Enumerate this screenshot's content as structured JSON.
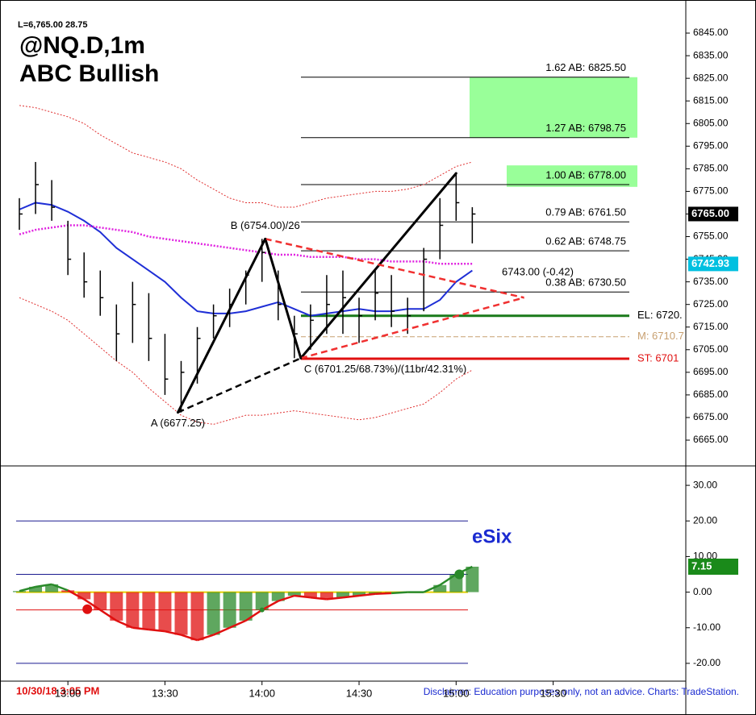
{
  "chart_data": [
    {
      "type": "ohlc",
      "header": "L=6,765.00  28.75",
      "title": "@NQ.D,1m",
      "subtitle": "ABC Bullish",
      "x": [
        "12:45",
        "12:50",
        "12:55",
        "13:00",
        "13:05",
        "13:10",
        "13:15",
        "13:20",
        "13:25",
        "13:30",
        "13:35",
        "13:40",
        "13:45",
        "13:50",
        "13:55",
        "14:00",
        "14:05",
        "14:10",
        "14:15",
        "14:20",
        "14:25",
        "14:30",
        "14:35",
        "14:40",
        "14:45",
        "14:50",
        "14:55",
        "15:00",
        "15:05"
      ],
      "high": [
        6772,
        6788,
        6780,
        6762,
        6748,
        6740,
        6725,
        6735,
        6730,
        6712,
        6700,
        6715,
        6725,
        6732,
        6740,
        6754,
        6740,
        6720,
        6725,
        6738,
        6740,
        6728,
        6740,
        6738,
        6728,
        6750,
        6772,
        6783,
        6768
      ],
      "low": [
        6758,
        6765,
        6762,
        6738,
        6728,
        6720,
        6700,
        6708,
        6700,
        6685,
        6677.25,
        6690,
        6710,
        6715,
        6725,
        6735,
        6718,
        6701.25,
        6705,
        6712,
        6712,
        6708,
        6718,
        6715,
        6712,
        6722,
        6745,
        6762,
        6752
      ],
      "close": [
        6765,
        6778,
        6768,
        6745,
        6735,
        6728,
        6712,
        6725,
        6710,
        6692,
        6695,
        6710,
        6720,
        6725,
        6738,
        6748,
        6725,
        6712,
        6718,
        6725,
        6728,
        6720,
        6730,
        6722,
        6720,
        6745,
        6760,
        6770,
        6765
      ],
      "overlays": [
        {
          "color": "#e03030",
          "style": "dotted",
          "values": [
            6813,
            6812,
            6810,
            6808,
            6805,
            6800,
            6796,
            6792,
            6790,
            6788,
            6785,
            6780,
            6776,
            6772,
            6770,
            6770,
            6768,
            6768,
            6770,
            6772,
            6773,
            6774,
            6775,
            6775,
            6776,
            6778,
            6782,
            6786,
            6788
          ]
        },
        {
          "color": "#e03030",
          "style": "dotted",
          "values": [
            6728,
            6725,
            6722,
            6718,
            6712,
            6706,
            6700,
            6695,
            6688,
            6682,
            6676,
            6673,
            6672,
            6674,
            6676,
            6676,
            6677,
            6678,
            6677,
            6676,
            6675,
            6674,
            6675,
            6677,
            6679,
            6681,
            6686,
            6692,
            6696
          ]
        },
        {
          "color": "#1f2fd6",
          "style": "solid",
          "values": [
            6767,
            6770,
            6769,
            6766,
            6762,
            6757,
            6750,
            6745,
            6740,
            6735,
            6728,
            6722,
            6721,
            6721,
            6722,
            6724,
            6726,
            6723,
            6720,
            6721,
            6722,
            6723,
            6722,
            6722,
            6723,
            6723,
            6727,
            6735,
            6740
          ]
        },
        {
          "color": "#e020e0",
          "style": "dotted",
          "values": [
            6756,
            6758,
            6759,
            6760,
            6760,
            6759,
            6758,
            6757,
            6755,
            6754,
            6753,
            6752,
            6751,
            6750,
            6749,
            6748,
            6747,
            6747,
            6746,
            6746,
            6746,
            6745,
            6745,
            6744,
            6744,
            6744,
            6743,
            6743,
            6743
          ]
        }
      ],
      "points": [
        {
          "label": "A (6677.25)",
          "x": "13:34",
          "value": 6677.25
        },
        {
          "label": "B (6754.00)/26",
          "x": "14:01",
          "value": 6754
        },
        {
          "label": "C (6701.25/68.73%)/(11br/42.31%)",
          "x": "14:12",
          "value": 6701.25
        },
        {
          "x": "15:00",
          "value": 6783
        }
      ],
      "apex": {
        "x": "15:21",
        "value": 6728
      },
      "annotation": "6743.00 (-0.42)",
      "fib_levels": [
        {
          "label": "1.62 AB: 6825.50",
          "value": 6825.5
        },
        {
          "label": "1.27 AB: 6798.75",
          "value": 6798.75
        },
        {
          "label": "1.00 AB: 6778.00",
          "value": 6778
        },
        {
          "label": "0.79 AB: 6761.50",
          "value": 6761.5
        },
        {
          "label": "0.62 AB: 6748.75",
          "value": 6748.75
        },
        {
          "label": "0.38 AB: 6730.50",
          "value": 6730.5
        }
      ],
      "target_zones": [
        {
          "from": 6798.75,
          "to": 6825.5
        },
        {
          "from": 6777,
          "to": 6786.5
        }
      ],
      "entry_levels": [
        {
          "label": "EL: 6720.",
          "value": 6720,
          "color": "#1a7a1a"
        },
        {
          "label": "M: 6710.7",
          "value": 6710.7,
          "color": "#c8a070"
        },
        {
          "label": "ST: 6701",
          "value": 6701,
          "color": "#e01010"
        }
      ],
      "price_tags": [
        {
          "label": "6765.00",
          "value": 6765,
          "color": "#000000"
        },
        {
          "label": "6742.93",
          "value": 6742.93,
          "color": "#00c0e0"
        }
      ],
      "xlim": [
        "12:44",
        "16:11"
      ],
      "xticks": [
        "13:00",
        "13:30",
        "14:00",
        "14:30",
        "15:00",
        "15:30"
      ],
      "ylim": [
        6653.6,
        6852.5
      ],
      "yticks": [
        {
          "value": 6665,
          "label": "6665.00"
        },
        {
          "value": 6675,
          "label": "6675.00"
        },
        {
          "value": 6685,
          "label": "6685.00"
        },
        {
          "value": 6695,
          "label": "6695.00"
        },
        {
          "value": 6705,
          "label": "6705.00"
        },
        {
          "value": 6715,
          "label": "6715.00"
        },
        {
          "value": 6725,
          "label": "6725.00"
        },
        {
          "value": 6735,
          "label": "6735.00"
        },
        {
          "value": 6745,
          "label": "6745.00"
        },
        {
          "value": 6755,
          "label": "6755.00"
        },
        {
          "value": 6765,
          "label": "6765.00"
        },
        {
          "value": 6775,
          "label": "6775.00"
        },
        {
          "value": 6785,
          "label": "6785.00"
        },
        {
          "value": 6795,
          "label": "6795.00"
        },
        {
          "value": 6805,
          "label": "6805.00"
        },
        {
          "value": 6815,
          "label": "6815.00"
        },
        {
          "value": 6825,
          "label": "6825.00"
        },
        {
          "value": 6835,
          "label": "6835.00"
        },
        {
          "value": 6845,
          "label": "6845.00"
        }
      ]
    },
    {
      "type": "oscillator",
      "title": "eSix",
      "values": [
        0.3,
        1.5,
        2.2,
        0.5,
        -2,
        -5,
        -8,
        -10,
        -10.5,
        -11,
        -12,
        -13.5,
        -12,
        -10,
        -8,
        -5,
        -2.5,
        -1,
        -1.5,
        -2,
        -1.5,
        -1,
        -0.5,
        -0.3,
        0,
        0,
        2,
        5,
        7.15
      ],
      "hlines": [
        {
          "value": 20,
          "color": "#1a1a90"
        },
        {
          "value": 5,
          "color": "#1a1a90"
        },
        {
          "value": -5,
          "color": "#e01010"
        },
        {
          "value": -20,
          "color": "#1a1a90"
        }
      ],
      "dots": [
        {
          "x": "13:06",
          "value": -4.8,
          "color": "#e01010"
        },
        {
          "x": "14:00",
          "value": -5,
          "color": "#2a8a2a"
        },
        {
          "x": "15:01",
          "value": 5,
          "color": "#2a8a2a"
        }
      ],
      "last_tag": {
        "label": "7.15",
        "value": 7.15,
        "color": "#1a8a1a"
      },
      "ylim": [
        -25,
        35
      ],
      "yticks": [
        {
          "value": -20,
          "label": "-20.00"
        },
        {
          "value": -10,
          "label": "-10.00"
        },
        {
          "value": 0,
          "label": "0.00"
        },
        {
          "value": 10,
          "label": "10.00"
        },
        {
          "value": 20,
          "label": "20.00"
        },
        {
          "value": 30,
          "label": "30.00"
        }
      ]
    }
  ],
  "footer": {
    "date": "10/30/18 3:05 PM",
    "disclaimer": "Disclaimer: Education purposes only, not an advice.  Charts: TradeStation."
  }
}
